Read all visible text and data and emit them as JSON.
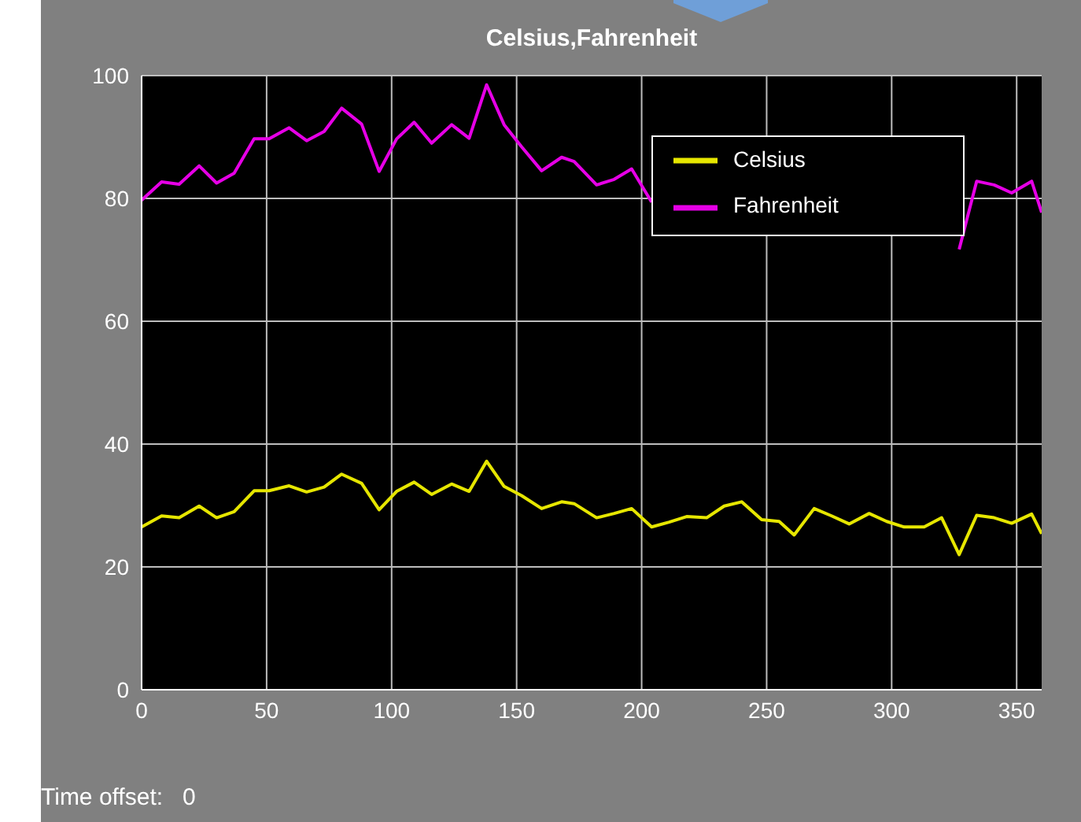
{
  "chart_data": {
    "type": "line",
    "title": "Celsius,Fahrenheit",
    "x": [
      0,
      8,
      15,
      23,
      30,
      37,
      45,
      51,
      59,
      66,
      73,
      80,
      88,
      95,
      102,
      109,
      116,
      124,
      131,
      138,
      145,
      152,
      160,
      168,
      173,
      182,
      189,
      196,
      204,
      211,
      218,
      226,
      233,
      240,
      248,
      255,
      261,
      269,
      276,
      283,
      291,
      298,
      305,
      313,
      320,
      327,
      334,
      341,
      348,
      356,
      360
    ],
    "series": [
      {
        "name": "Celsius",
        "color": "#e6e600",
        "values": [
          26.5,
          28.3,
          28.0,
          29.9,
          28.0,
          29.0,
          32.4,
          32.4,
          33.2,
          32.2,
          33.0,
          35.1,
          33.6,
          29.3,
          32.3,
          33.8,
          31.8,
          33.5,
          32.3,
          37.2,
          33.1,
          31.6,
          29.5,
          30.6,
          30.3,
          28.0,
          28.7,
          29.5,
          26.5,
          27.3,
          28.2,
          28.0,
          29.9,
          30.6,
          27.7,
          27.4,
          25.2,
          29.5,
          28.3,
          27.0,
          28.7,
          27.4,
          26.5,
          26.5,
          28.0,
          22.0,
          28.4,
          28.0,
          27.1,
          28.6,
          25.4
        ]
      },
      {
        "name": "Fahrenheit",
        "color": "#e600e6",
        "values": [
          79.7,
          82.7,
          82.3,
          85.3,
          82.5,
          84.1,
          89.7,
          89.7,
          91.5,
          89.4,
          90.9,
          94.7,
          92.1,
          84.4,
          89.7,
          92.4,
          89.0,
          92.0,
          89.8,
          98.5,
          92.0,
          88.4,
          84.5,
          86.7,
          86.0,
          82.2,
          83.1,
          84.8,
          79.4,
          null,
          null,
          null,
          null,
          null,
          null,
          null,
          null,
          null,
          null,
          null,
          null,
          null,
          null,
          null,
          null,
          71.7,
          82.8,
          82.2,
          80.9,
          82.8,
          77.7
        ]
      }
    ],
    "xlim": [
      0,
      360
    ],
    "xticks": [
      0,
      50,
      100,
      150,
      200,
      250,
      300,
      350
    ],
    "ylim": [
      0,
      100
    ],
    "yticks": [
      0,
      20,
      40,
      60,
      80,
      100
    ],
    "grid": true,
    "legend": "top right",
    "marker": "none",
    "line_style": "solid",
    "annotations": [
      "Time offset:   0"
    ]
  }
}
